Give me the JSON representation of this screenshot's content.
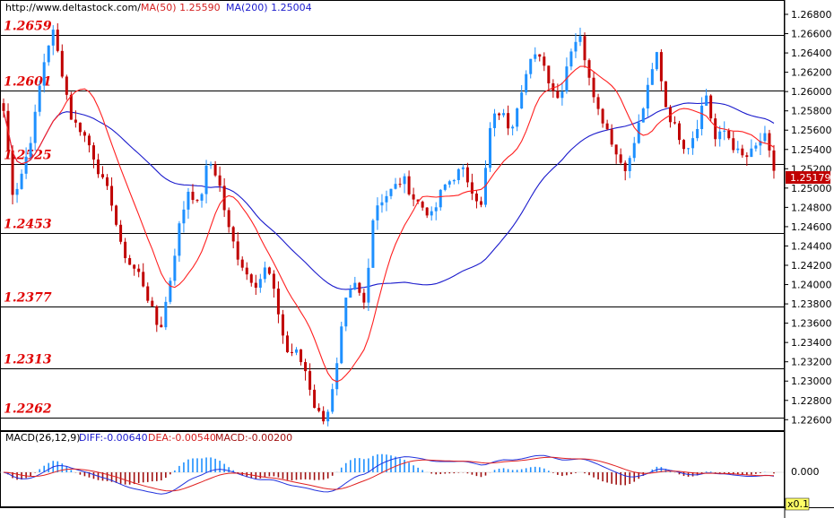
{
  "header": {
    "site": "http://www.deltastock.com/",
    "ma50": "MA(50)  1.25590",
    "ma200": "MA(200)  1.25004"
  },
  "macd_header": {
    "name": "MACD(26,12,9)",
    "diff": "DIFF:-0.00640",
    "dea": "DEA:-0.00540",
    "macd": "MACD:-0.00200"
  },
  "last_price": "1.25179",
  "macd_zero_label": "0.000",
  "macd_scale_label": "x0.1",
  "levels": [
    "1.2659",
    "1.2601",
    "1.2525",
    "1.2453",
    "1.2377",
    "1.2313",
    "1.2262"
  ],
  "colors": {
    "bull": "#1e90ff",
    "bear": "#c00000",
    "ma50": "#ff2020",
    "ma200": "#1a1acc",
    "level_text": "#e00000",
    "macd_pos": "#1e90ff",
    "macd_neg": "#a01010"
  },
  "chart_data": {
    "type": "candlestick",
    "y_ticks": [
      "1.26800",
      "1.26600",
      "1.26400",
      "1.26200",
      "1.26000",
      "1.25800",
      "1.25600",
      "1.25400",
      "1.25200",
      "1.25000",
      "1.24800",
      "1.24600",
      "1.24400",
      "1.24200",
      "1.24000",
      "1.23800",
      "1.23600",
      "1.23400",
      "1.23200",
      "1.23000",
      "1.22800",
      "1.22600"
    ],
    "ylim": [
      1.2251,
      1.2693
    ],
    "levels": [
      1.2659,
      1.2601,
      1.2525,
      1.2453,
      1.2377,
      1.2313,
      1.2262
    ],
    "closes": [
      1.258,
      1.249,
      1.252,
      1.256,
      1.2625,
      1.2665,
      1.262,
      1.257,
      1.256,
      1.254,
      1.251,
      1.249,
      1.244,
      1.242,
      1.241,
      1.238,
      1.235,
      1.24,
      1.246,
      1.25,
      1.248,
      1.253,
      1.251,
      1.246,
      1.243,
      1.241,
      1.24,
      1.242,
      1.238,
      1.233,
      1.233,
      1.231,
      1.227,
      1.226,
      1.23,
      1.238,
      1.24,
      1.238,
      1.248,
      1.249,
      1.25,
      1.251,
      1.249,
      1.248,
      1.247,
      1.25,
      1.251,
      1.252,
      1.25,
      1.248,
      1.257,
      1.258,
      1.256,
      1.26,
      1.263,
      1.264,
      1.261,
      1.259,
      1.264,
      1.266,
      1.262,
      1.258,
      1.256,
      1.253,
      1.252,
      1.256,
      1.26,
      1.264,
      1.258,
      1.256,
      1.254,
      1.256,
      1.26,
      1.255,
      1.256,
      1.254,
      1.253,
      1.254,
      1.2555,
      1.2518
    ],
    "ma50_label": "MA(50)",
    "ma200_label": "MA(200)",
    "macd": {
      "diff_label": "DIFF",
      "dea_label": "DEA",
      "hist_label": "MACD"
    }
  }
}
